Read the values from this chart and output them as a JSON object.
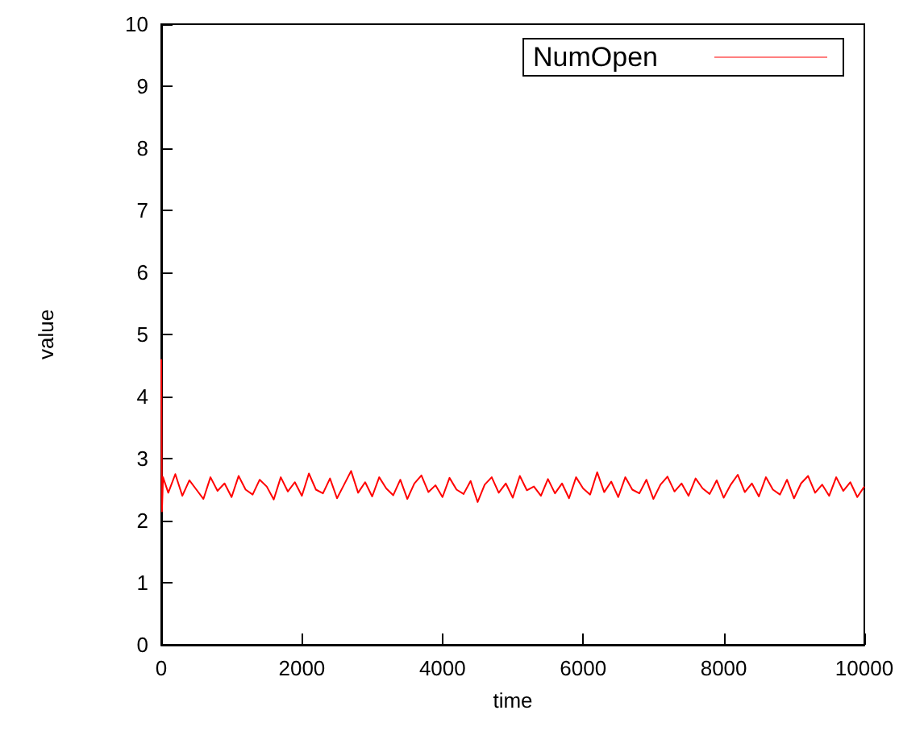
{
  "chart_data": {
    "type": "line",
    "xlabel": "time",
    "ylabel": "value",
    "x": [
      0,
      10,
      25,
      100,
      200,
      300,
      400,
      500,
      600,
      700,
      800,
      900,
      1000,
      1100,
      1200,
      1300,
      1400,
      1500,
      1600,
      1700,
      1800,
      1900,
      2000,
      2100,
      2200,
      2300,
      2400,
      2500,
      2600,
      2700,
      2800,
      2900,
      3000,
      3100,
      3200,
      3300,
      3400,
      3500,
      3600,
      3700,
      3800,
      3900,
      4000,
      4100,
      4200,
      4300,
      4400,
      4500,
      4600,
      4700,
      4800,
      4900,
      5000,
      5100,
      5200,
      5300,
      5400,
      5500,
      5600,
      5700,
      5800,
      5900,
      6000,
      6100,
      6200,
      6300,
      6400,
      6500,
      6600,
      6700,
      6800,
      6900,
      7000,
      7100,
      7200,
      7300,
      7400,
      7500,
      7600,
      7700,
      7800,
      7900,
      8000,
      8100,
      8200,
      8300,
      8400,
      8500,
      8600,
      8700,
      8800,
      8900,
      9000,
      9100,
      9200,
      9300,
      9400,
      9500,
      9600,
      9700,
      9800,
      9900,
      10000
    ],
    "series": [
      {
        "name": "NumOpen",
        "color": "#ff0000",
        "values": [
          4.6,
          2.15,
          2.7,
          2.45,
          2.75,
          2.4,
          2.65,
          2.5,
          2.35,
          2.7,
          2.48,
          2.6,
          2.38,
          2.72,
          2.5,
          2.42,
          2.66,
          2.55,
          2.34,
          2.7,
          2.47,
          2.62,
          2.4,
          2.76,
          2.5,
          2.44,
          2.68,
          2.36,
          2.58,
          2.8,
          2.45,
          2.62,
          2.39,
          2.7,
          2.52,
          2.41,
          2.66,
          2.35,
          2.6,
          2.73,
          2.46,
          2.57,
          2.38,
          2.69,
          2.5,
          2.43,
          2.64,
          2.3,
          2.58,
          2.7,
          2.45,
          2.6,
          2.37,
          2.72,
          2.49,
          2.55,
          2.4,
          2.67,
          2.44,
          2.6,
          2.36,
          2.7,
          2.52,
          2.42,
          2.78,
          2.46,
          2.63,
          2.38,
          2.7,
          2.5,
          2.44,
          2.66,
          2.35,
          2.58,
          2.71,
          2.47,
          2.6,
          2.4,
          2.68,
          2.52,
          2.43,
          2.65,
          2.37,
          2.58,
          2.74,
          2.46,
          2.6,
          2.39,
          2.7,
          2.5,
          2.42,
          2.66,
          2.36,
          2.6,
          2.72,
          2.45,
          2.58,
          2.4,
          2.7,
          2.48,
          2.62,
          2.38,
          2.55
        ]
      }
    ],
    "xlim": [
      0,
      10000
    ],
    "xticks": [
      0,
      2000,
      4000,
      6000,
      8000,
      10000
    ],
    "ylim": [
      0,
      10
    ],
    "yticks": [
      0,
      1,
      2,
      3,
      4,
      5,
      6,
      7,
      8,
      9,
      10
    ],
    "legend": "top right",
    "marker": "none",
    "line_style": "solid",
    "grid": false
  }
}
